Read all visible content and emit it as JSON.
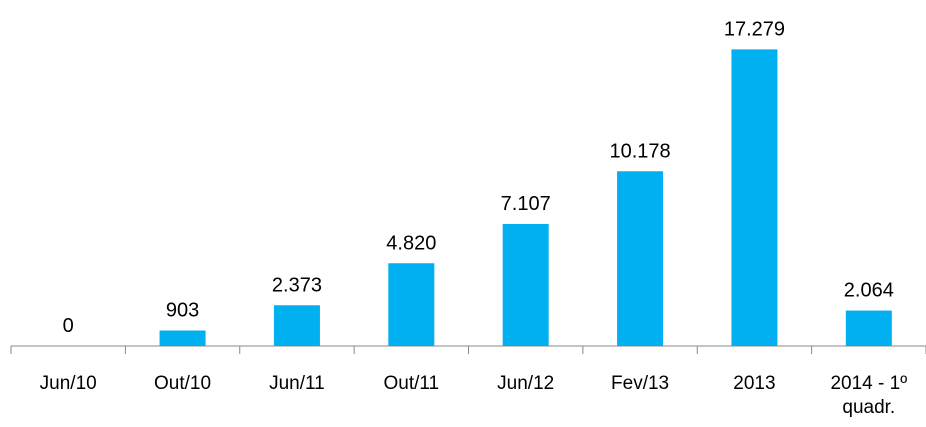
{
  "chart_data": {
    "type": "bar",
    "categories": [
      "Jun/10",
      "Out/10",
      "Jun/11",
      "Out/11",
      "Jun/12",
      "Fev/13",
      "2013",
      "2014 - 1º quadr."
    ],
    "values": [
      0,
      903,
      2373,
      4820,
      7107,
      10178,
      17279,
      2064
    ],
    "value_labels": [
      "0",
      "903",
      "2.373",
      "4.820",
      "7.107",
      "10.178",
      "17.279",
      "2.064"
    ],
    "color": "#00b0f0",
    "ylim": [
      0,
      18000
    ]
  }
}
